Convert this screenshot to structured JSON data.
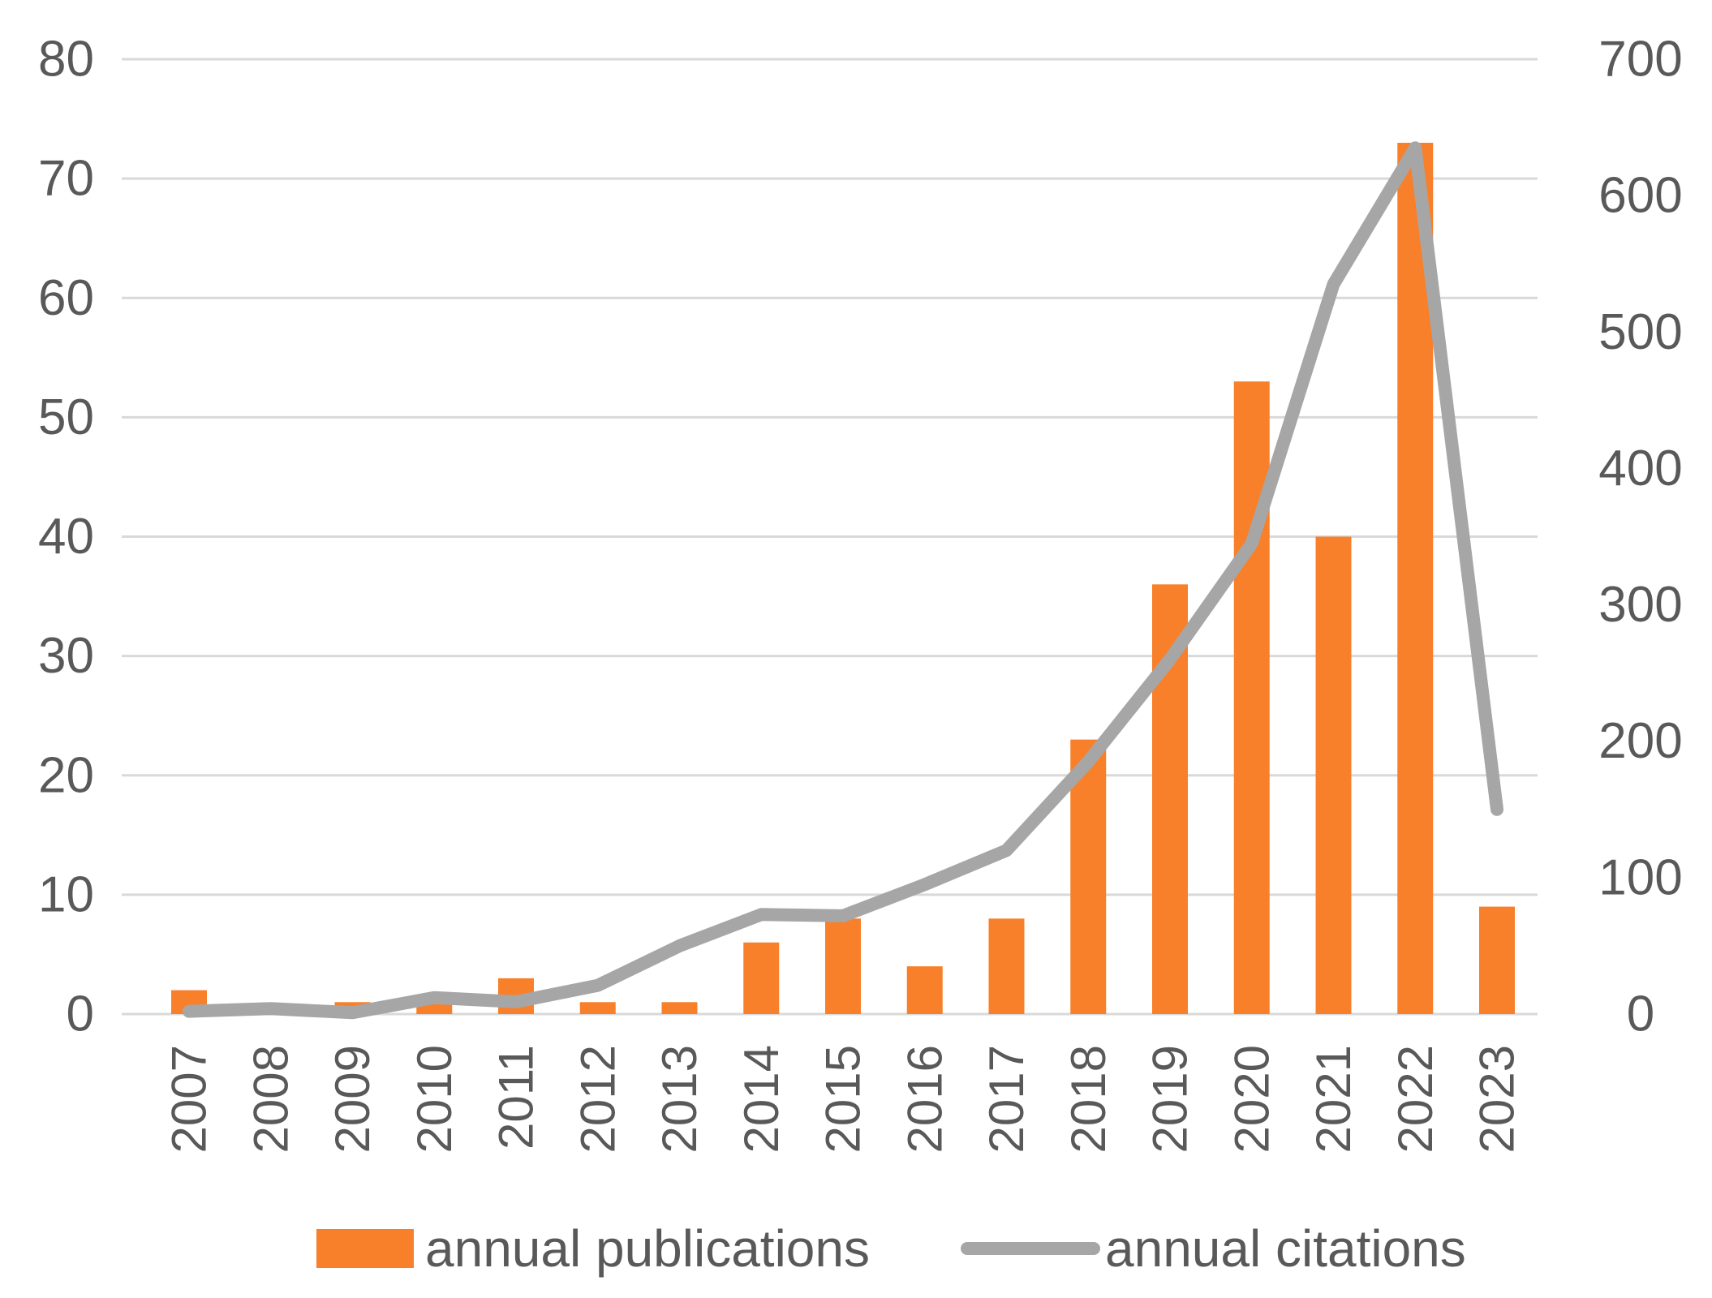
{
  "chart_data": {
    "type": "combo",
    "title": "",
    "categories": [
      "2007",
      "2008",
      "2009",
      "2010",
      "2011",
      "2012",
      "2013",
      "2014",
      "2015",
      "2016",
      "2017",
      "2018",
      "2019",
      "2020",
      "2021",
      "2022",
      "2023"
    ],
    "series": [
      {
        "name": "annual publications",
        "type": "bar",
        "axis": "left",
        "color": "#F8802A",
        "values": [
          2,
          0,
          1,
          1,
          3,
          1,
          1,
          6,
          8,
          4,
          8,
          23,
          36,
          53,
          40,
          73,
          9
        ]
      },
      {
        "name": "annual citations",
        "type": "line",
        "axis": "right",
        "color": "#A6A6A6",
        "values": [
          2,
          4,
          1,
          12,
          9,
          21,
          50,
          73,
          72,
          95,
          120,
          185,
          260,
          345,
          535,
          635,
          150
        ]
      }
    ],
    "left_axis": {
      "min": 0,
      "max": 80,
      "step": 10,
      "ticks": [
        "0",
        "10",
        "20",
        "30",
        "40",
        "50",
        "60",
        "70",
        "80"
      ]
    },
    "right_axis": {
      "min": 0,
      "max": 700,
      "step": 100,
      "ticks": [
        "0",
        "100",
        "200",
        "300",
        "400",
        "500",
        "600",
        "700"
      ]
    },
    "grid": "horizontal-left-axis-only",
    "legend_position": "bottom",
    "xlabel": "",
    "ylabel": ""
  },
  "legend": {
    "publications_label": "annual publications",
    "citations_label": "annual citations"
  },
  "colors": {
    "bar_orange": "#F8802A",
    "line_gray": "#A6A6A6",
    "tick_text": "#595959",
    "gridline": "#D9D9D9",
    "background": "#FFFFFF"
  }
}
